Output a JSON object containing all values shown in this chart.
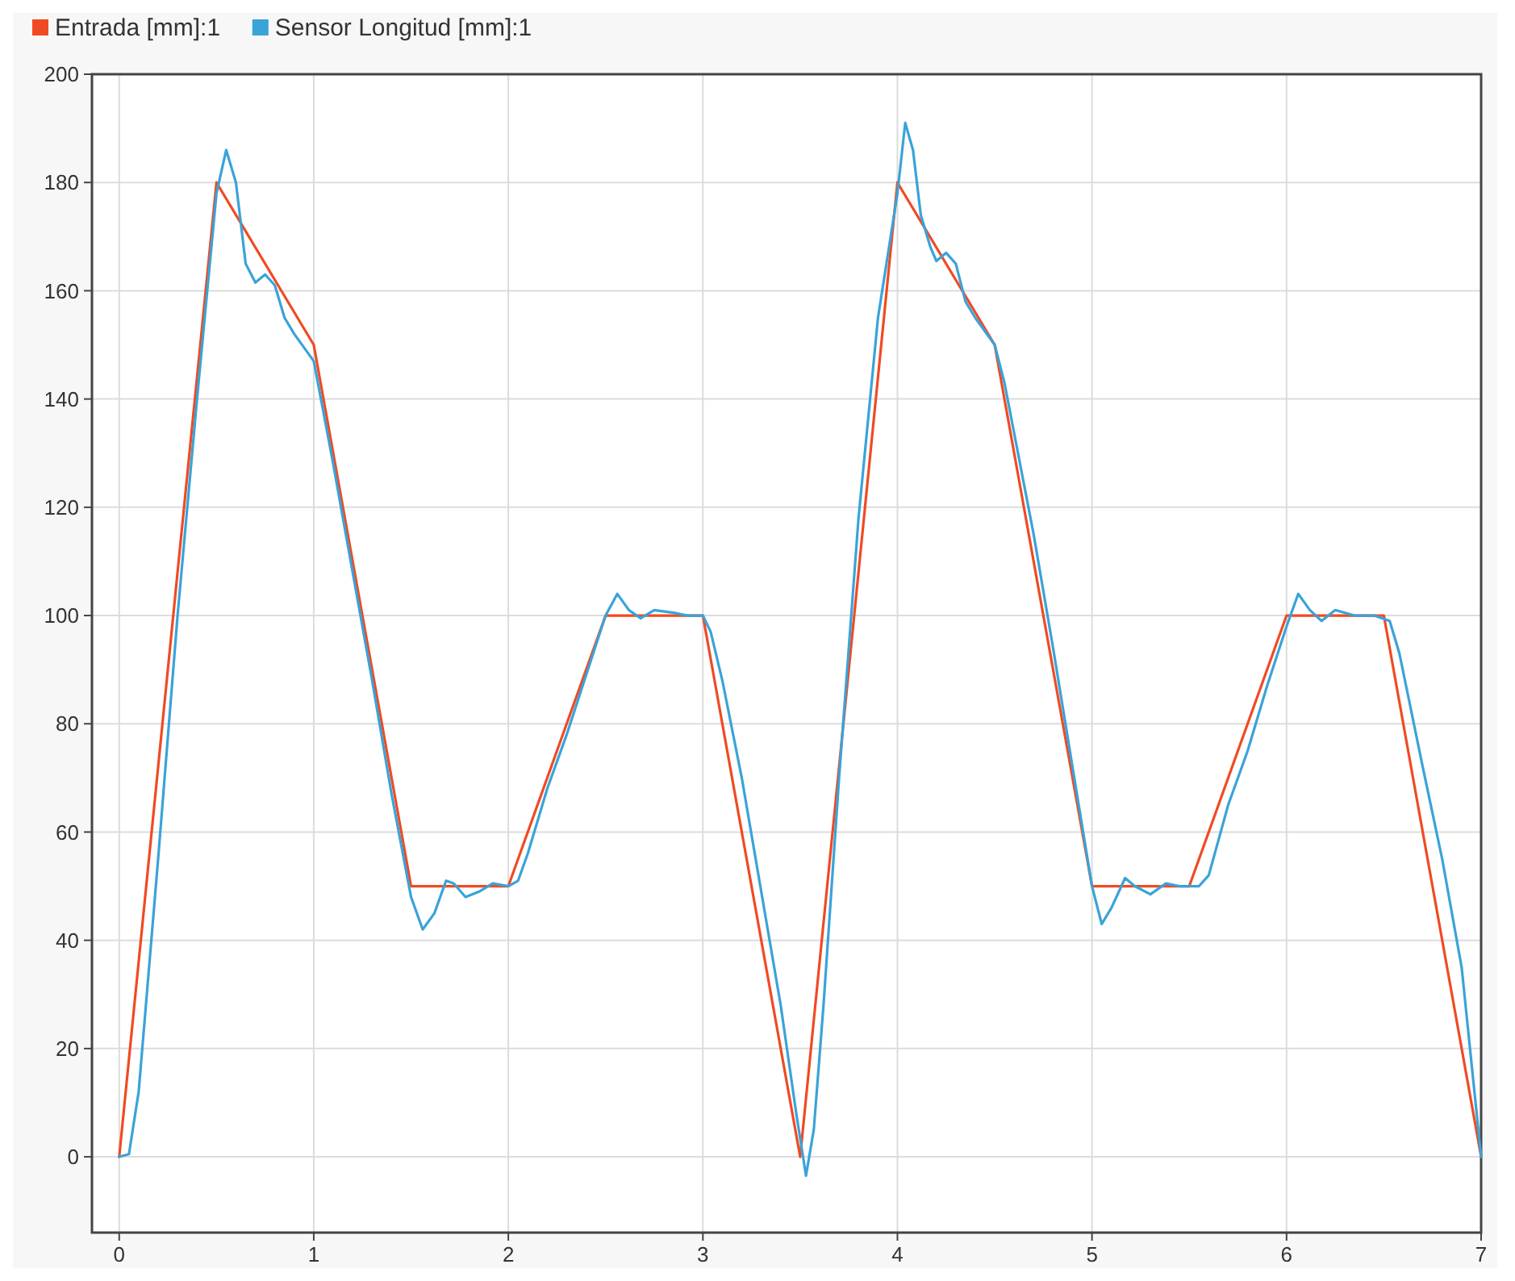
{
  "chart_data": {
    "type": "line",
    "xlim": [
      -0.14,
      7
    ],
    "ylim": [
      -14,
      200
    ],
    "xticks": [
      0,
      1,
      2,
      3,
      4,
      5,
      6,
      7
    ],
    "yticks": [
      0,
      20,
      40,
      60,
      80,
      100,
      120,
      140,
      160,
      180,
      200
    ],
    "grid": true,
    "legend": "top left",
    "marker": "none",
    "line_style": "solid",
    "series": [
      {
        "name": "Entrada [mm]:1",
        "color": "#f04a23",
        "x": [
          0,
          0.5,
          1,
          1.5,
          2,
          2.5,
          3,
          3.5,
          4,
          4.5,
          5,
          5.5,
          6,
          6.5,
          7
        ],
        "values": [
          0,
          180,
          150,
          50,
          50,
          100,
          100,
          0,
          180,
          150,
          50,
          50,
          100,
          100,
          0
        ]
      },
      {
        "name": "Sensor Longitud [mm]:1",
        "color": "#3aa3d8",
        "x": [
          0,
          0.05,
          0.1,
          0.2,
          0.3,
          0.4,
          0.5,
          0.55,
          0.6,
          0.65,
          0.7,
          0.75,
          0.8,
          0.85,
          0.9,
          1.0,
          1.1,
          1.2,
          1.3,
          1.4,
          1.5,
          1.56,
          1.62,
          1.68,
          1.72,
          1.78,
          1.85,
          1.92,
          2.0,
          2.05,
          2.1,
          2.2,
          2.3,
          2.4,
          2.5,
          2.56,
          2.62,
          2.68,
          2.75,
          2.85,
          2.92,
          3.0,
          3.04,
          3.1,
          3.2,
          3.3,
          3.4,
          3.48,
          3.53,
          3.57,
          3.62,
          3.7,
          3.8,
          3.9,
          4.0,
          4.04,
          4.08,
          4.12,
          4.17,
          4.2,
          4.25,
          4.3,
          4.35,
          4.4,
          4.5,
          4.55,
          4.7,
          4.8,
          4.9,
          5.0,
          5.05,
          5.1,
          5.17,
          5.22,
          5.3,
          5.38,
          5.45,
          5.55,
          5.6,
          5.7,
          5.8,
          5.9,
          6.0,
          6.06,
          6.12,
          6.18,
          6.25,
          6.35,
          6.45,
          6.53,
          6.58,
          6.7,
          6.8,
          6.9,
          7.0
        ],
        "values": [
          0,
          0.5,
          12,
          55,
          100,
          140,
          178,
          186,
          180,
          165,
          161.5,
          163,
          161,
          155,
          152,
          147,
          128,
          108,
          88,
          67,
          48,
          42,
          45,
          51,
          50.5,
          48,
          49,
          50.5,
          50,
          51,
          56,
          68,
          78,
          89,
          100,
          104,
          101,
          99.5,
          101,
          100.5,
          100,
          100,
          97,
          88,
          70,
          49,
          28,
          8,
          -3.5,
          5,
          28,
          70,
          118,
          155,
          178,
          191,
          186,
          174,
          168,
          165.5,
          167,
          165,
          158,
          155,
          150,
          143,
          115,
          94,
          72,
          50,
          43,
          46,
          51.5,
          50,
          48.5,
          50.5,
          50,
          50,
          52,
          65,
          75,
          87,
          98,
          104,
          101,
          99,
          101,
          100,
          100,
          99,
          93,
          72,
          55,
          35,
          0
        ]
      }
    ]
  }
}
